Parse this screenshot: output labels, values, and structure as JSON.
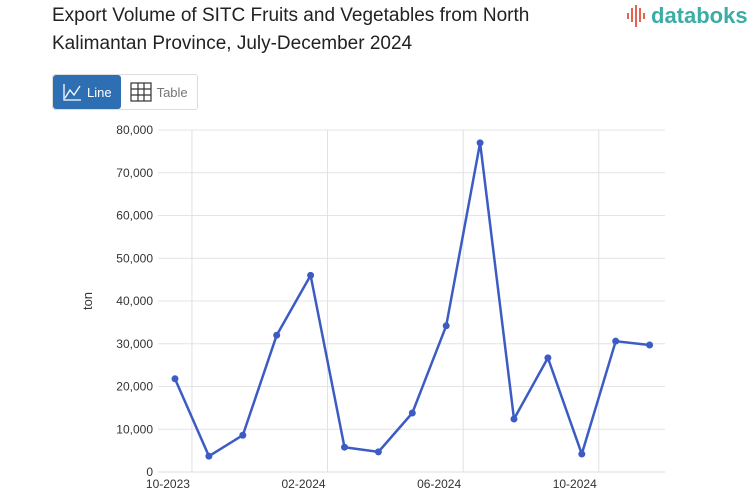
{
  "header": {
    "title": "Export Volume of SITC Fruits and Vegetables from North Kalimantan Province, July-December 2024",
    "logo": "databoks"
  },
  "view_toggle": {
    "line_label": "Line",
    "table_label": "Table",
    "active": "Line"
  },
  "colors": {
    "line": "#3c5cc4",
    "active_button": "#2e6fb4",
    "logo": "#3aaea5"
  },
  "chart_data": {
    "type": "line",
    "title": "Export Volume of SITC Fruits and Vegetables from North Kalimantan Province, July-December 2024",
    "xlabel": "",
    "ylabel": "ton",
    "x": [
      "10-2023",
      "11-2023",
      "12-2023",
      "01-2024",
      "02-2024",
      "03-2024",
      "04-2024",
      "05-2024",
      "06-2024",
      "07-2024",
      "08-2024",
      "09-2024",
      "10-2024",
      "11-2024",
      "12-2024"
    ],
    "x_tick_labels": [
      "10-2023",
      "02-2024",
      "06-2024",
      "10-2024"
    ],
    "y_ticks": [
      "0",
      "10,000",
      "20,000",
      "30,000",
      "40,000",
      "50,000",
      "60,000",
      "70,000",
      "80,000"
    ],
    "series": [
      {
        "values": [
          21800,
          3700,
          8600,
          32000,
          46000,
          5800,
          4700,
          13800,
          34200,
          77000,
          12400,
          26700,
          4200,
          30600,
          29700
        ]
      }
    ],
    "ylim": [
      0,
      80000
    ],
    "grid": true,
    "legend": "none"
  }
}
